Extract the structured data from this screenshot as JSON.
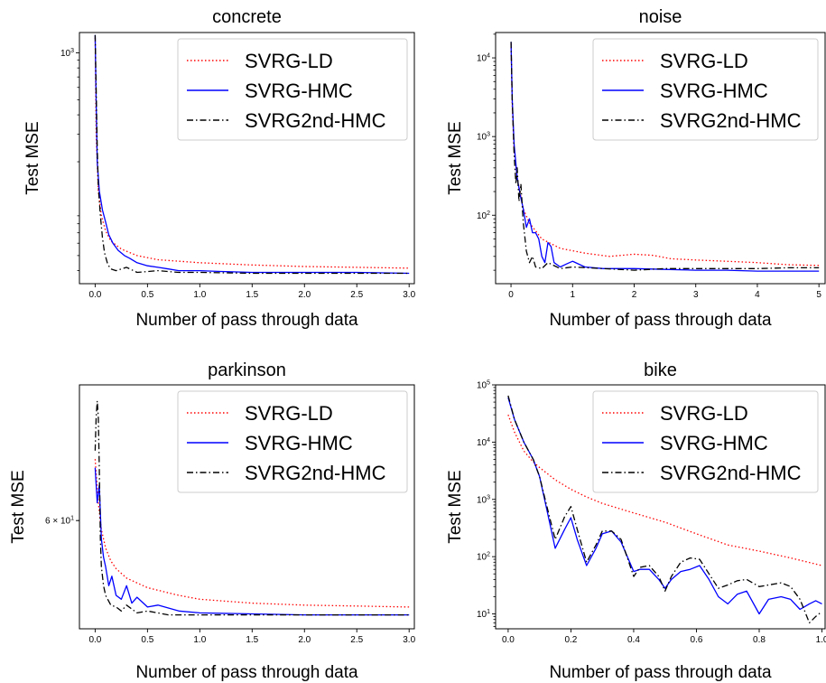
{
  "chart_data": [
    {
      "type": "line",
      "title": "concrete",
      "xlabel": "Number of pass through data",
      "ylabel": "Test MSE",
      "yscale": "log",
      "xlim": [
        -0.15,
        3.05
      ],
      "ylim": [
        33,
        1350
      ],
      "xticks": [
        "0.0",
        "0.5",
        "1.0",
        "1.5",
        "2.0",
        "2.5",
        "3.0"
      ],
      "yticks": [
        {
          "value": 1000,
          "label": "10^3"
        }
      ],
      "legend": "top-right",
      "series": [
        {
          "name": "SVRG-LD",
          "color": "#ff0000",
          "style": "dotted",
          "x": [
            0,
            0.01,
            0.03,
            0.06,
            0.1,
            0.15,
            0.25,
            0.4,
            0.6,
            1.0,
            1.5,
            2.0,
            2.5,
            3.0
          ],
          "y": [
            1250,
            300,
            130,
            90,
            72,
            62,
            55,
            50,
            47,
            45,
            43.5,
            42.5,
            42,
            41.5
          ]
        },
        {
          "name": "SVRG-HMC",
          "color": "#0000ff",
          "style": "solid",
          "x": [
            0,
            0.01,
            0.02,
            0.04,
            0.07,
            0.1,
            0.13,
            0.17,
            0.22,
            0.28,
            0.33,
            0.4,
            0.5,
            0.6,
            0.7,
            0.8,
            1.0,
            1.2,
            1.5,
            2.0,
            2.5,
            3.0
          ],
          "y": [
            1300,
            500,
            200,
            130,
            98,
            82,
            68,
            60,
            54,
            50,
            48,
            45,
            43,
            42,
            41,
            40,
            40,
            39.5,
            39,
            39,
            39,
            38.5
          ]
        },
        {
          "name": "SVRG2nd-HMC",
          "color": "#000000",
          "style": "dashdot",
          "x": [
            0,
            0.01,
            0.02,
            0.03,
            0.05,
            0.07,
            0.09,
            0.12,
            0.15,
            0.2,
            0.3,
            0.4,
            0.6,
            0.8,
            1.0,
            1.5,
            2.0,
            2.5,
            3.0
          ],
          "y": [
            1300,
            600,
            250,
            140,
            90,
            65,
            52,
            44,
            41,
            40,
            42,
            39,
            40,
            39,
            39,
            38.5,
            38.5,
            38.5,
            38.5
          ]
        }
      ]
    },
    {
      "type": "line",
      "title": "noise",
      "xlabel": "Number of pass through data",
      "ylabel": "Test MSE",
      "yscale": "log",
      "xlim": [
        -0.25,
        5.1
      ],
      "ylim": [
        13.5,
        21000
      ],
      "xticks": [
        "0",
        "1",
        "2",
        "3",
        "4",
        "5"
      ],
      "yticks": [
        {
          "value": 100,
          "label": "10^2"
        },
        {
          "value": 1000,
          "label": "10^3"
        },
        {
          "value": 10000,
          "label": "10^4"
        }
      ],
      "legend": "top-right",
      "series": [
        {
          "name": "SVRG-LD",
          "color": "#ff0000",
          "style": "dotted",
          "x": [
            0,
            0.02,
            0.05,
            0.1,
            0.2,
            0.3,
            0.5,
            0.8,
            1.2,
            1.6,
            2.0,
            2.3,
            2.6,
            3.0,
            3.5,
            4.0,
            4.5,
            5.0
          ],
          "y": [
            15000,
            2500,
            700,
            300,
            120,
            80,
            50,
            38,
            33,
            30,
            32,
            31,
            28,
            27,
            26,
            25,
            23.5,
            23
          ]
        },
        {
          "name": "SVRG-HMC",
          "color": "#0000ff",
          "style": "solid",
          "x": [
            0,
            0.02,
            0.05,
            0.1,
            0.15,
            0.2,
            0.25,
            0.3,
            0.35,
            0.4,
            0.45,
            0.5,
            0.55,
            0.6,
            0.65,
            0.7,
            0.8,
            0.9,
            1.0,
            1.2,
            1.5,
            2.0,
            2.5,
            3.0,
            3.5,
            4.0,
            4.5,
            5.0
          ],
          "y": [
            16000,
            3000,
            800,
            300,
            180,
            120,
            70,
            90,
            60,
            60,
            50,
            30,
            25,
            45,
            40,
            25,
            22,
            24,
            26,
            22,
            21,
            21,
            20.5,
            20,
            20,
            19.5,
            19.5,
            19.5
          ]
        },
        {
          "name": "SVRG2nd-HMC",
          "color": "#000000",
          "style": "dashdot",
          "x": [
            0,
            0.02,
            0.05,
            0.08,
            0.1,
            0.13,
            0.16,
            0.2,
            0.25,
            0.3,
            0.35,
            0.4,
            0.5,
            0.6,
            0.8,
            1.0,
            1.5,
            2.0,
            2.5,
            3.0,
            3.5,
            4.0,
            4.5,
            5.0
          ],
          "y": [
            16000,
            3000,
            600,
            250,
            400,
            150,
            250,
            80,
            35,
            25,
            30,
            22,
            21,
            25,
            21,
            22,
            21,
            20,
            21,
            21,
            21,
            21,
            21.5,
            21.5
          ]
        }
      ]
    },
    {
      "type": "line",
      "title": "parkinson",
      "xlabel": "Number of pass through data",
      "ylabel": "Test MSE",
      "yscale": "log",
      "xlim": [
        -0.15,
        3.05
      ],
      "ylim": [
        54.3,
        68
      ],
      "xticks": [
        "0.0",
        "0.5",
        "1.0",
        "1.5",
        "2.0",
        "2.5",
        "3.0"
      ],
      "yticks": [
        {
          "value": 60,
          "label": "6 × 10^1"
        }
      ],
      "legend": "top-right",
      "series": [
        {
          "name": "SVRG-LD",
          "color": "#ff0000",
          "style": "dotted",
          "x": [
            0,
            0.03,
            0.06,
            0.1,
            0.15,
            0.2,
            0.3,
            0.5,
            0.8,
            1.0,
            1.5,
            2.0,
            2.5,
            3.0
          ],
          "y": [
            63.5,
            61,
            59.5,
            58.5,
            57.8,
            57.4,
            56.9,
            56.4,
            56.0,
            55.8,
            55.6,
            55.5,
            55.45,
            55.4
          ]
        },
        {
          "name": "SVRG-HMC",
          "color": "#0000ff",
          "style": "solid",
          "x": [
            0,
            0.02,
            0.04,
            0.06,
            0.08,
            0.1,
            0.13,
            0.16,
            0.2,
            0.25,
            0.3,
            0.35,
            0.4,
            0.5,
            0.6,
            0.8,
            1.0,
            1.5,
            2.0,
            2.5,
            3.0
          ],
          "y": [
            63,
            61,
            62,
            59,
            58,
            57.5,
            56.5,
            57,
            56,
            55.8,
            56.5,
            55.6,
            55.9,
            55.4,
            55.5,
            55.2,
            55.1,
            55.05,
            55.0,
            55.0,
            55.0
          ]
        },
        {
          "name": "SVRG2nd-HMC",
          "color": "#000000",
          "style": "dashdot",
          "x": [
            0,
            0.01,
            0.02,
            0.03,
            0.04,
            0.05,
            0.06,
            0.08,
            0.1,
            0.12,
            0.15,
            0.2,
            0.25,
            0.3,
            0.4,
            0.5,
            0.7,
            1.0,
            1.5,
            2.0,
            2.5,
            3.0
          ],
          "y": [
            64,
            66,
            67,
            66,
            63,
            59,
            57.5,
            56.5,
            56,
            55.8,
            55.5,
            55.4,
            55.2,
            55.5,
            55.1,
            55.2,
            55.0,
            55.0,
            55.0,
            55.0,
            55.0,
            55.0
          ]
        }
      ]
    },
    {
      "type": "line",
      "title": "bike",
      "xlabel": "Number of pass through data",
      "ylabel": "Test MSE",
      "yscale": "log",
      "xlim": [
        -0.04,
        1.01
      ],
      "ylim": [
        5.5,
        100000
      ],
      "xticks": [
        "0.0",
        "0.2",
        "0.4",
        "0.6",
        "0.8",
        "1.0"
      ],
      "yticks": [
        {
          "value": 10,
          "label": "10^1"
        },
        {
          "value": 100,
          "label": "10^2"
        },
        {
          "value": 1000,
          "label": "10^3"
        },
        {
          "value": 10000,
          "label": "10^4"
        },
        {
          "value": 100000,
          "label": "10^5"
        }
      ],
      "legend": "top-right",
      "series": [
        {
          "name": "SVRG-LD",
          "color": "#ff0000",
          "style": "dotted",
          "x": [
            0,
            0.02,
            0.05,
            0.08,
            0.1,
            0.15,
            0.2,
            0.25,
            0.3,
            0.4,
            0.5,
            0.6,
            0.7,
            0.8,
            0.9,
            1.0
          ],
          "y": [
            30000,
            15000,
            7000,
            4500,
            3600,
            2200,
            1500,
            1100,
            850,
            580,
            400,
            250,
            160,
            125,
            95,
            70
          ]
        },
        {
          "name": "SVRG-HMC",
          "color": "#0000ff",
          "style": "solid",
          "x": [
            0,
            0.02,
            0.05,
            0.08,
            0.1,
            0.12,
            0.15,
            0.18,
            0.2,
            0.22,
            0.25,
            0.28,
            0.3,
            0.33,
            0.36,
            0.4,
            0.42,
            0.45,
            0.48,
            0.5,
            0.52,
            0.55,
            0.58,
            0.61,
            0.64,
            0.67,
            0.7,
            0.73,
            0.76,
            0.8,
            0.83,
            0.87,
            0.9,
            0.93,
            0.96,
            0.98,
            1.0
          ],
          "y": [
            60000,
            25000,
            10000,
            5000,
            2500,
            800,
            140,
            300,
            480,
            200,
            70,
            140,
            250,
            280,
            180,
            55,
            60,
            60,
            40,
            28,
            40,
            55,
            60,
            70,
            40,
            20,
            15,
            22,
            25,
            10,
            18,
            20,
            18,
            12,
            15,
            17,
            15
          ]
        },
        {
          "name": "SVRG2nd-HMC",
          "color": "#000000",
          "style": "dashdot",
          "x": [
            0,
            0.02,
            0.05,
            0.08,
            0.1,
            0.12,
            0.15,
            0.18,
            0.2,
            0.22,
            0.25,
            0.28,
            0.3,
            0.33,
            0.36,
            0.4,
            0.42,
            0.45,
            0.48,
            0.5,
            0.52,
            0.55,
            0.58,
            0.61,
            0.64,
            0.67,
            0.7,
            0.73,
            0.76,
            0.8,
            0.83,
            0.87,
            0.9,
            0.93,
            0.96,
            0.98,
            1.0
          ],
          "y": [
            65000,
            25000,
            10000,
            5000,
            2500,
            900,
            200,
            500,
            750,
            300,
            80,
            160,
            280,
            280,
            200,
            45,
            65,
            70,
            45,
            25,
            45,
            80,
            95,
            90,
            50,
            28,
            32,
            38,
            40,
            30,
            32,
            35,
            30,
            18,
            7,
            9,
            11
          ]
        }
      ]
    }
  ]
}
